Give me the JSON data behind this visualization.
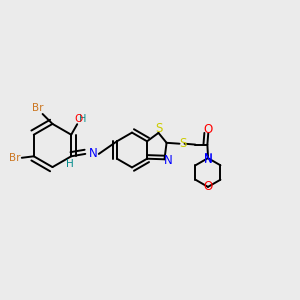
{
  "background_color": "#ebebeb",
  "colors": {
    "C": "#000000",
    "Br": "#cc7722",
    "O": "#ff0000",
    "N": "#0000ff",
    "S": "#cccc00",
    "H_label": "#008b8b"
  },
  "bond_color": "#000000",
  "bond_lw": 1.4,
  "font_size": 7.5
}
